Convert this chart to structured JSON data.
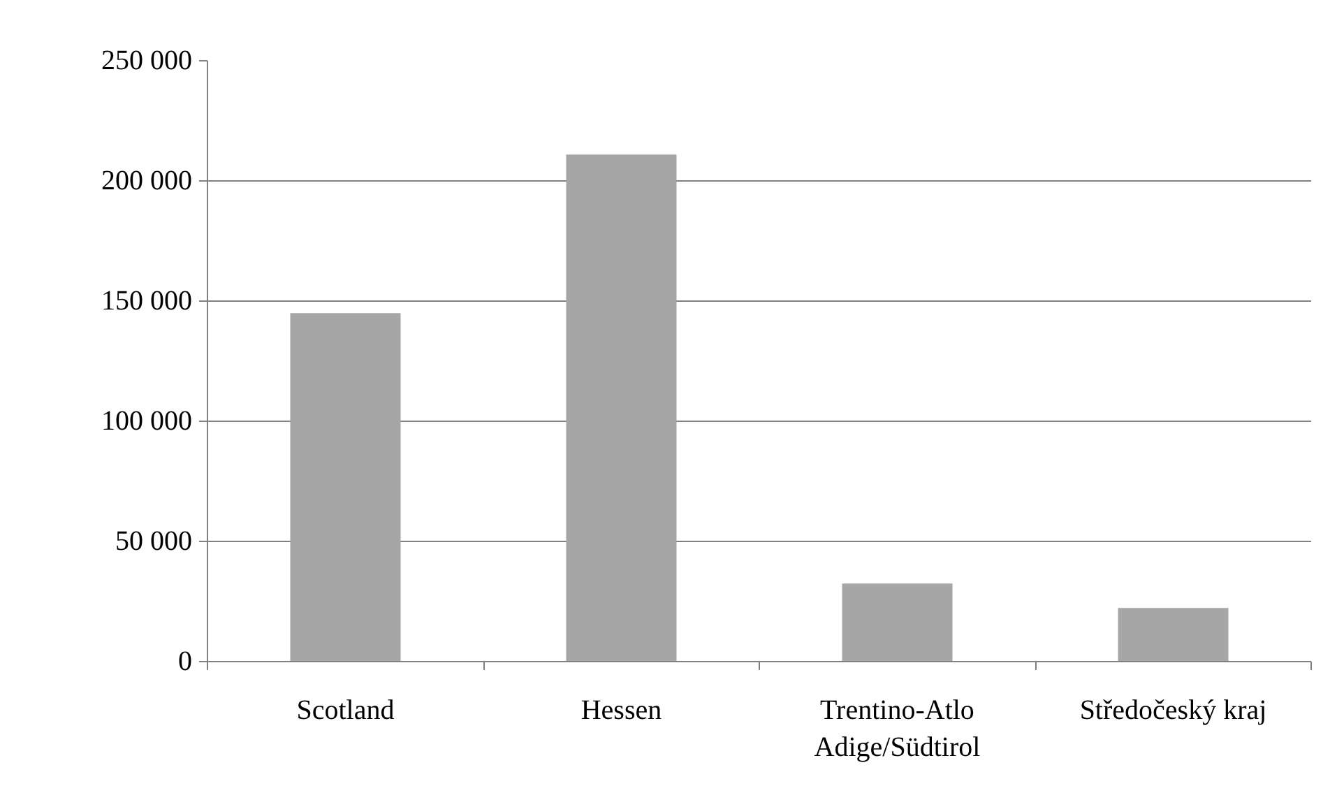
{
  "chart_data": {
    "type": "bar",
    "categories": [
      "Scotland",
      "Hessen",
      "Trentino-Atlo Adige/Südtirol",
      "Středočeský kraj"
    ],
    "values": [
      145000,
      211000,
      32500,
      22300
    ],
    "color": "#a6a6a6",
    "ylim": [
      0,
      250000
    ],
    "yticks": [
      {
        "value": 0,
        "label": "0"
      },
      {
        "value": 50000,
        "label": "50 000"
      },
      {
        "value": 100000,
        "label": "100 000"
      },
      {
        "value": 150000,
        "label": "150 000"
      },
      {
        "value": 200000,
        "label": "200 000"
      },
      {
        "value": 250000,
        "label": "250 000"
      }
    ],
    "grid": "y"
  }
}
